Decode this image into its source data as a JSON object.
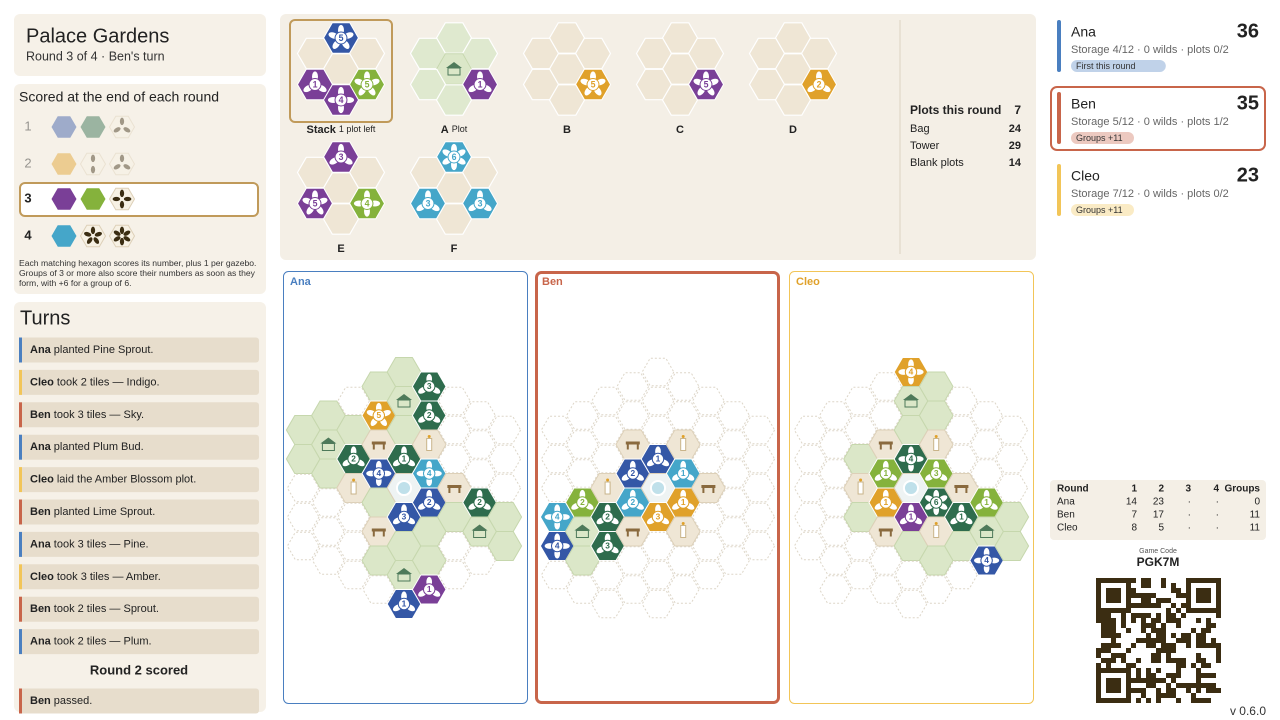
{
  "header": {
    "title": "Palace Gardens",
    "subtitle": "Round 3 of 4 · Ben's turn"
  },
  "palette": {
    "sky": "#45a6c9",
    "indigo": "#3457a6",
    "plum": "#7a3f97",
    "lime": "#85b23c",
    "amber": "#e0a12a",
    "pine": "#2e6c4d"
  },
  "scoring": {
    "title": "Scored at the end of each round",
    "rows": [
      {
        "round": 1,
        "done": true,
        "goals": [
          {
            "color": "indigo"
          },
          {
            "color": "pine"
          },
          {
            "petals": 3
          }
        ]
      },
      {
        "round": 2,
        "done": true,
        "goals": [
          {
            "color": "amber"
          },
          {
            "petals": 2
          },
          {
            "petals": 3
          }
        ]
      },
      {
        "round": 3,
        "current": true,
        "goals": [
          {
            "color": "plum"
          },
          {
            "color": "lime"
          },
          {
            "petals": 4
          }
        ]
      },
      {
        "round": 4,
        "goals": [
          {
            "color": "sky"
          },
          {
            "petals": 5
          },
          {
            "petals": 6
          }
        ]
      }
    ],
    "note": "Each matching hexagon scores its number, plus 1 per gazebo. Groups of 3 or more also score their numbers as soon as they form, with +6 for a group of 6."
  },
  "turns": {
    "title": "Turns",
    "entries": [
      {
        "player": "Ana",
        "text": "planted Pine Sprout."
      },
      {
        "player": "Cleo",
        "text": "took 2 tiles — Indigo."
      },
      {
        "player": "Ben",
        "text": "took 3 tiles — Sky."
      },
      {
        "player": "Ana",
        "text": "planted Plum Bud."
      },
      {
        "player": "Cleo",
        "text": "laid the Amber Blossom plot."
      },
      {
        "player": "Ben",
        "text": "planted Lime Sprout."
      },
      {
        "player": "Ana",
        "text": "took 3 tiles — Pine."
      },
      {
        "player": "Cleo",
        "text": "took 3 tiles — Amber."
      },
      {
        "player": "Ben",
        "text": "took 2 tiles — Sprout."
      },
      {
        "player": "Ana",
        "text": "took 2 tiles — Plum."
      },
      {
        "divider": "Round 2 scored"
      },
      {
        "player": "Ben",
        "text": "passed."
      }
    ]
  },
  "offers": [
    {
      "label": "Stack",
      "note": "1 plot left",
      "selected": true,
      "cells": [
        {
          "color": "indigo",
          "n": 5
        },
        null,
        null,
        null,
        {
          "color": "plum",
          "n": 1
        },
        {
          "color": "lime",
          "n": 5
        },
        {
          "color": "plum",
          "n": 4
        }
      ]
    },
    {
      "label": "A",
      "note": "Plot",
      "plot": true,
      "cells": [
        null,
        null,
        null,
        "z",
        null,
        {
          "color": "plum",
          "n": 1
        },
        null
      ]
    },
    {
      "label": "B",
      "cells": [
        null,
        null,
        null,
        null,
        null,
        {
          "color": "amber",
          "n": 5
        },
        null
      ]
    },
    {
      "label": "C",
      "cells": [
        null,
        null,
        null,
        null,
        null,
        {
          "color": "plum",
          "n": 5
        },
        null
      ]
    },
    {
      "label": "D",
      "cells": [
        null,
        null,
        null,
        null,
        null,
        {
          "color": "amber",
          "n": 2
        },
        null
      ]
    },
    {
      "label": "E",
      "cells": [
        {
          "color": "plum",
          "n": 3
        },
        null,
        null,
        null,
        {
          "color": "plum",
          "n": 5
        },
        {
          "color": "lime",
          "n": 4
        },
        null
      ]
    },
    {
      "label": "F",
      "cells": [
        {
          "color": "sky",
          "n": 6
        },
        null,
        null,
        null,
        {
          "color": "sky",
          "n": 3
        },
        {
          "color": "sky",
          "n": 3
        },
        null
      ]
    }
  ],
  "supply": {
    "title": "Plots this round",
    "value": 7,
    "rows": [
      {
        "label": "Bag",
        "value": 24
      },
      {
        "label": "Tower",
        "value": 29
      },
      {
        "label": "Blank plots",
        "value": 14
      }
    ]
  },
  "boards": [
    {
      "player": "Ana",
      "columns": [
        [
          null,
          null,
          "g",
          "g",
          ".",
          ".",
          ".",
          null,
          null
        ],
        [
          null,
          "g",
          "z",
          "g",
          ".",
          ".",
          ".",
          null,
          null
        ],
        [
          null,
          ".",
          "g",
          {
            "color": "pine",
            "n": 2
          },
          "t",
          ".",
          ".",
          ".",
          null
        ],
        [
          "g",
          {
            "color": "amber",
            "n": 5
          },
          "b",
          {
            "color": "indigo",
            "n": 4
          },
          "g",
          "b",
          "g",
          ".",
          null
        ],
        [
          "g",
          "z",
          "g",
          {
            "color": "pine",
            "n": 1
          },
          "f",
          {
            "color": "indigo",
            "n": 3
          },
          "g",
          "z",
          {
            "color": "indigo",
            "n": 1
          }
        ],
        [
          {
            "color": "pine",
            "n": 3
          },
          {
            "color": "pine",
            "n": 2
          },
          "t",
          {
            "color": "sky",
            "n": 4
          },
          {
            "color": "indigo",
            "n": 2
          },
          "g",
          "g",
          {
            "color": "plum",
            "n": 1
          },
          null
        ],
        [
          null,
          ".",
          ".",
          ".",
          "b",
          "g",
          ".",
          ".",
          null
        ],
        [
          null,
          ".",
          ".",
          ".",
          {
            "color": "pine",
            "n": 2
          },
          "z",
          ".",
          null,
          null
        ],
        [
          null,
          null,
          ".",
          ".",
          ".",
          "g",
          "g",
          null,
          null
        ]
      ]
    },
    {
      "player": "Ben",
      "columns": [
        [
          null,
          null,
          ".",
          ".",
          ".",
          {
            "color": "sky",
            "n": 4
          },
          {
            "color": "indigo",
            "n": 4
          },
          ".",
          null
        ],
        [
          null,
          ".",
          ".",
          ".",
          {
            "color": "lime",
            "n": 2
          },
          "z",
          "g",
          ".",
          null
        ],
        [
          null,
          ".",
          ".",
          ".",
          "t",
          {
            "color": "pine",
            "n": 2
          },
          {
            "color": "pine",
            "n": 3
          },
          ".",
          "."
        ],
        [
          ".",
          ".",
          "b",
          {
            "color": "indigo",
            "n": 2
          },
          {
            "color": "sky",
            "n": 2
          },
          "b",
          ".",
          ".",
          null
        ],
        [
          ".",
          ".",
          ".",
          {
            "color": "indigo",
            "n": 1
          },
          "f",
          {
            "color": "amber",
            "n": 3
          },
          ".",
          ".",
          "."
        ],
        [
          ".",
          ".",
          "t",
          {
            "color": "sky",
            "n": 1
          },
          {
            "color": "amber",
            "n": 1
          },
          "t",
          ".",
          ".",
          null
        ],
        [
          null,
          ".",
          ".",
          ".",
          "b",
          ".",
          ".",
          ".",
          null
        ],
        [
          null,
          ".",
          ".",
          ".",
          ".",
          ".",
          ".",
          null,
          null
        ],
        [
          null,
          null,
          ".",
          ".",
          ".",
          ".",
          ".",
          null,
          null
        ]
      ]
    },
    {
      "player": "Cleo",
      "columns": [
        [
          null,
          null,
          ".",
          ".",
          ".",
          ".",
          ".",
          null,
          null
        ],
        [
          null,
          ".",
          ".",
          ".",
          ".",
          ".",
          ".",
          ".",
          null
        ],
        [
          null,
          ".",
          ".",
          "g",
          "t",
          "g",
          ".",
          ".",
          null
        ],
        [
          ".",
          ".",
          "b",
          {
            "color": "lime",
            "n": 1
          },
          {
            "color": "amber",
            "n": 1
          },
          "b",
          ".",
          ".",
          null
        ],
        [
          {
            "color": "amber",
            "n": 4
          },
          "z",
          "g",
          {
            "color": "pine",
            "n": 4
          },
          "f",
          {
            "color": "plum",
            "n": 1
          },
          "g",
          ".",
          "."
        ],
        [
          "g",
          "g",
          "t",
          {
            "color": "lime",
            "n": 3
          },
          {
            "color": "pine",
            "n": 6
          },
          "t",
          "g",
          ".",
          null
        ],
        [
          null,
          ".",
          ".",
          ".",
          "b",
          {
            "color": "pine",
            "n": 1
          },
          "g",
          ".",
          null
        ],
        [
          null,
          ".",
          ".",
          ".",
          {
            "color": "lime",
            "n": 1
          },
          "z",
          {
            "color": "indigo",
            "n": 4
          },
          null,
          null
        ],
        [
          null,
          null,
          ".",
          ".",
          ".",
          "g",
          "g",
          null,
          null
        ]
      ]
    }
  ],
  "players": [
    {
      "name": "Ana",
      "score": 36,
      "detail": "Storage 4/12 · 0 wilds · plots 0/2",
      "badge": "First this round",
      "color": "#4a7fc0"
    },
    {
      "name": "Ben",
      "score": 35,
      "detail": "Storage 5/12 · 0 wilds · plots 1/2",
      "badge": "Groups +11",
      "color": "#c8654a",
      "active": true
    },
    {
      "name": "Cleo",
      "score": 23,
      "detail": "Storage 7/12 · 0 wilds · plots 0/2",
      "badge": "Groups +11",
      "color": "#f2c558"
    }
  ],
  "score_table": {
    "header": [
      "Round",
      1,
      2,
      3,
      4,
      "Groups"
    ],
    "rows": [
      [
        "Ana",
        14,
        23,
        "·",
        "·",
        0
      ],
      [
        "Ben",
        7,
        17,
        "·",
        "·",
        11
      ],
      [
        "Cleo",
        8,
        5,
        "·",
        "·",
        11
      ]
    ]
  },
  "game_code": {
    "label": "Game Code",
    "code": "PGK7M"
  },
  "version": "v 0.6.0"
}
